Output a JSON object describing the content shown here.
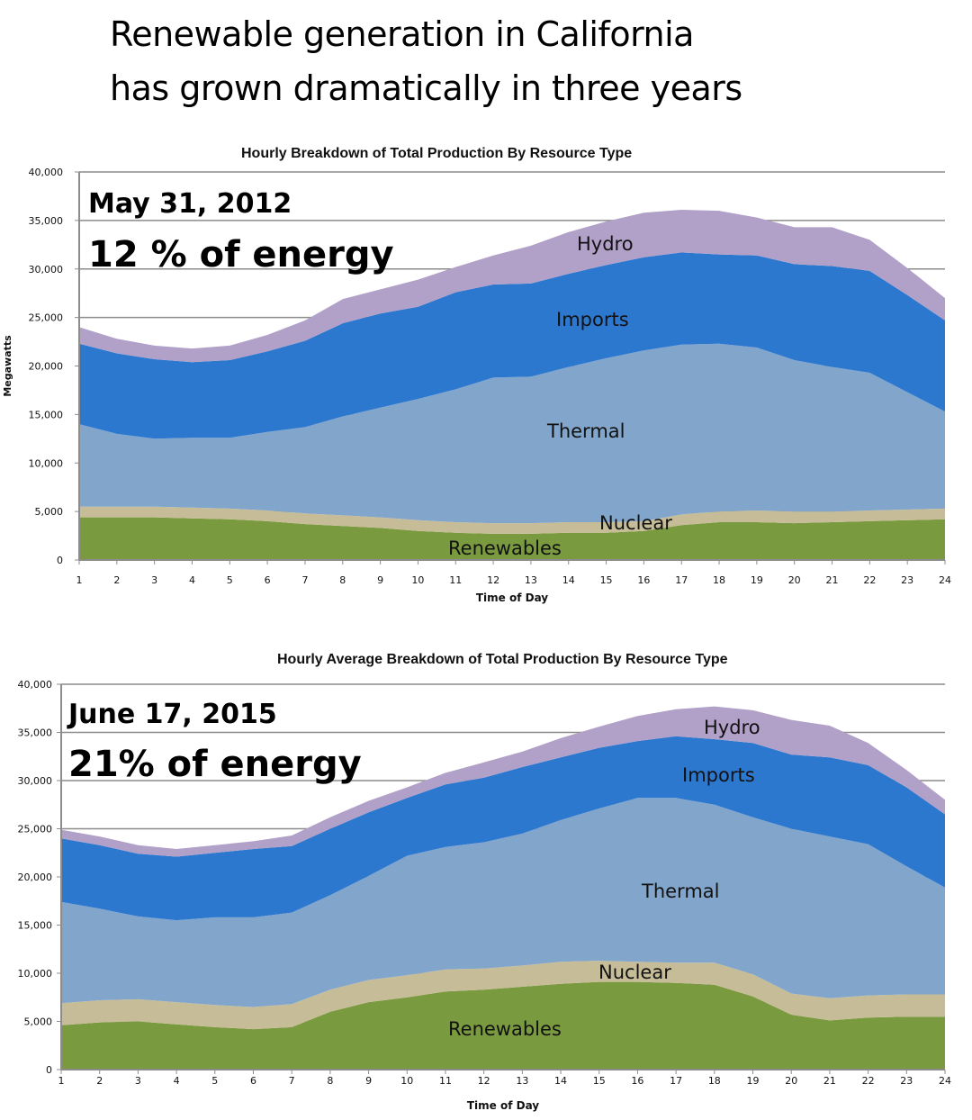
{
  "headline": {
    "line1": "Renewable generation in California",
    "line2": "has grown dramatically in three years"
  },
  "colors": {
    "renewables": "#7a9a3f",
    "nuclear": "#c6bd98",
    "thermal": "#81a5cb",
    "imports": "#2d78cf",
    "hydro": "#b1a0c8",
    "grid": "#8c8c8c"
  },
  "chart_data": [
    {
      "type": "area",
      "stacked": true,
      "title": "Hourly Breakdown of Total Production By Resource Type",
      "xlabel": "Time of Day",
      "ylabel": "Megawatts",
      "ylim": [
        0,
        40000
      ],
      "yticks": [
        0,
        5000,
        10000,
        15000,
        20000,
        25000,
        30000,
        35000,
        40000
      ],
      "ytick_labels": [
        "0",
        "5,000",
        "10,000",
        "15,000",
        "20,000",
        "25,000",
        "30,000",
        "35,000",
        "40,000"
      ],
      "grid": true,
      "annotation_date": "May 31, 2012",
      "annotation_share": "12 % of energy",
      "x": [
        1,
        2,
        3,
        4,
        5,
        6,
        7,
        8,
        9,
        10,
        11,
        12,
        13,
        14,
        15,
        16,
        17,
        18,
        19,
        20,
        21,
        22,
        23,
        24
      ],
      "series": [
        {
          "name": "Renewables",
          "label": "Renewables",
          "values": [
            4400,
            4400,
            4400,
            4300,
            4200,
            4000,
            3700,
            3500,
            3300,
            3000,
            2800,
            2700,
            2700,
            2800,
            2800,
            3000,
            3600,
            3900,
            3900,
            3800,
            3900,
            4000,
            4100,
            4200
          ]
        },
        {
          "name": "Nuclear",
          "label": "Nuclear",
          "values": [
            1100,
            1100,
            1100,
            1100,
            1100,
            1100,
            1100,
            1100,
            1100,
            1100,
            1100,
            1100,
            1100,
            1100,
            1100,
            1000,
            1100,
            1100,
            1200,
            1200,
            1100,
            1100,
            1100,
            1100
          ]
        },
        {
          "name": "Thermal",
          "label": "Thermal",
          "values": [
            8500,
            7500,
            7000,
            7200,
            7300,
            8100,
            8900,
            10200,
            11300,
            12500,
            13700,
            15000,
            15100,
            16000,
            16900,
            17600,
            17500,
            17300,
            16800,
            15600,
            14900,
            14200,
            12100,
            10000
          ]
        },
        {
          "name": "Imports",
          "label": "Imports",
          "values": [
            8300,
            8300,
            8200,
            7800,
            8000,
            8300,
            8900,
            9600,
            9700,
            9500,
            10000,
            9600,
            9600,
            9600,
            9600,
            9600,
            9500,
            9200,
            9500,
            9900,
            10400,
            10500,
            10000,
            9400
          ]
        },
        {
          "name": "Hydro",
          "label": "Hydro",
          "values": [
            1700,
            1500,
            1400,
            1400,
            1500,
            1700,
            2100,
            2500,
            2500,
            2800,
            2600,
            3000,
            3900,
            4300,
            4500,
            4600,
            4400,
            4500,
            3900,
            3800,
            4000,
            3200,
            2800,
            2300
          ]
        }
      ]
    },
    {
      "type": "area",
      "stacked": true,
      "title": "Hourly Average Breakdown of Total Production By Resource Type",
      "xlabel": "Time of Day",
      "ylabel": "",
      "ylim": [
        0,
        40000
      ],
      "yticks": [
        0,
        5000,
        10000,
        15000,
        20000,
        25000,
        30000,
        35000,
        40000
      ],
      "ytick_labels": [
        "0",
        "5,000",
        "10,000",
        "15,000",
        "20,000",
        "25,000",
        "30,000",
        "35,000",
        "40,000"
      ],
      "grid": true,
      "annotation_date": "June 17, 2015",
      "annotation_share": "21% of energy",
      "x": [
        1,
        2,
        3,
        4,
        5,
        6,
        7,
        8,
        9,
        10,
        11,
        12,
        13,
        14,
        15,
        16,
        17,
        18,
        19,
        20,
        21,
        22,
        23,
        24
      ],
      "series": [
        {
          "name": "Renewables",
          "label": "Renewables",
          "values": [
            4600,
            4900,
            5000,
            4700,
            4400,
            4200,
            4400,
            6000,
            7000,
            7500,
            8100,
            8300,
            8600,
            8900,
            9100,
            9100,
            9000,
            8800,
            7600,
            5700,
            5100,
            5400,
            5500,
            5500
          ]
        },
        {
          "name": "Nuclear",
          "label": "Nuclear",
          "values": [
            2300,
            2300,
            2300,
            2300,
            2300,
            2300,
            2400,
            2300,
            2300,
            2300,
            2300,
            2200,
            2200,
            2300,
            2200,
            2100,
            2100,
            2300,
            2300,
            2200,
            2300,
            2300,
            2300,
            2300
          ]
        },
        {
          "name": "Thermal",
          "label": "Thermal",
          "values": [
            10500,
            9500,
            8600,
            8500,
            9100,
            9300,
            9500,
            9800,
            10800,
            12400,
            12700,
            13100,
            13700,
            14700,
            15800,
            17000,
            17100,
            16400,
            16300,
            17100,
            16800,
            15700,
            13300,
            11100
          ]
        },
        {
          "name": "Imports",
          "label": "Imports",
          "values": [
            6600,
            6600,
            6500,
            6600,
            6700,
            7100,
            6900,
            6900,
            6600,
            6000,
            6500,
            6700,
            6900,
            6500,
            6300,
            5900,
            6400,
            6800,
            7700,
            7700,
            8200,
            8200,
            8200,
            7600
          ]
        },
        {
          "name": "Hydro",
          "label": "Hydro",
          "values": [
            900,
            900,
            900,
            800,
            800,
            800,
            1100,
            1200,
            1200,
            1100,
            1200,
            1600,
            1600,
            2000,
            2200,
            2600,
            2800,
            3400,
            3400,
            3600,
            3300,
            2300,
            1800,
            1500
          ]
        }
      ]
    }
  ]
}
